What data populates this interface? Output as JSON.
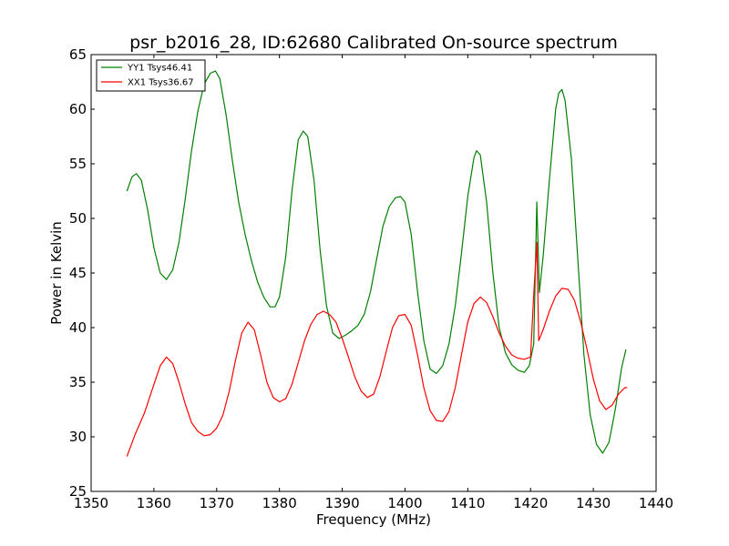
{
  "chart_data": {
    "type": "line",
    "title": "psr_b2016_28, ID:62680 Calibrated On-source spectrum",
    "xlabel": "Frequency (MHz)",
    "ylabel": "Power in Kelvin",
    "xlim": [
      1350,
      1440
    ],
    "ylim": [
      25,
      65
    ],
    "xticks": [
      1350,
      1360,
      1370,
      1380,
      1390,
      1400,
      1410,
      1420,
      1430,
      1440
    ],
    "yticks": [
      25,
      30,
      35,
      40,
      45,
      50,
      55,
      60,
      65
    ],
    "grid": false,
    "legend_position": "top-left",
    "series": [
      {
        "name": "YY1 Tsys46.41",
        "color": "#008000",
        "points": [
          [
            1355.7,
            52.5
          ],
          [
            1356.5,
            53.8
          ],
          [
            1357.2,
            54.1
          ],
          [
            1358.0,
            53.5
          ],
          [
            1359.0,
            50.8
          ],
          [
            1360.0,
            47.3
          ],
          [
            1361.0,
            45.0
          ],
          [
            1362.0,
            44.4
          ],
          [
            1363.0,
            45.3
          ],
          [
            1364.0,
            47.8
          ],
          [
            1365.0,
            51.8
          ],
          [
            1366.0,
            56.2
          ],
          [
            1367.0,
            59.8
          ],
          [
            1368.0,
            62.3
          ],
          [
            1369.0,
            63.3
          ],
          [
            1369.8,
            63.5
          ],
          [
            1370.5,
            62.8
          ],
          [
            1371.5,
            59.5
          ],
          [
            1372.5,
            55.3
          ],
          [
            1373.5,
            51.5
          ],
          [
            1374.5,
            48.6
          ],
          [
            1375.5,
            46.2
          ],
          [
            1376.5,
            44.2
          ],
          [
            1377.5,
            42.8
          ],
          [
            1378.5,
            41.9
          ],
          [
            1379.3,
            41.9
          ],
          [
            1380.0,
            42.8
          ],
          [
            1381.0,
            46.5
          ],
          [
            1382.0,
            52.5
          ],
          [
            1383.0,
            57.2
          ],
          [
            1383.8,
            58.0
          ],
          [
            1384.5,
            57.5
          ],
          [
            1385.5,
            53.5
          ],
          [
            1386.5,
            47.0
          ],
          [
            1387.5,
            42.0
          ],
          [
            1388.5,
            39.5
          ],
          [
            1389.5,
            39.0
          ],
          [
            1390.5,
            39.3
          ],
          [
            1391.5,
            39.7
          ],
          [
            1392.5,
            40.2
          ],
          [
            1393.5,
            41.2
          ],
          [
            1394.5,
            43.3
          ],
          [
            1395.5,
            46.3
          ],
          [
            1396.5,
            49.3
          ],
          [
            1397.5,
            51.1
          ],
          [
            1398.5,
            51.9
          ],
          [
            1399.3,
            52.0
          ],
          [
            1400.0,
            51.5
          ],
          [
            1401.0,
            48.5
          ],
          [
            1402.0,
            43.3
          ],
          [
            1403.0,
            38.8
          ],
          [
            1404.0,
            36.2
          ],
          [
            1405.0,
            35.8
          ],
          [
            1406.0,
            36.5
          ],
          [
            1407.0,
            38.5
          ],
          [
            1408.0,
            42.0
          ],
          [
            1409.0,
            46.8
          ],
          [
            1410.0,
            52.0
          ],
          [
            1411.0,
            55.6
          ],
          [
            1411.4,
            56.2
          ],
          [
            1412.0,
            55.8
          ],
          [
            1413.0,
            51.5
          ],
          [
            1414.0,
            45.0
          ],
          [
            1415.0,
            40.0
          ],
          [
            1416.0,
            37.7
          ],
          [
            1417.0,
            36.6
          ],
          [
            1418.0,
            36.1
          ],
          [
            1419.0,
            35.9
          ],
          [
            1419.8,
            36.5
          ],
          [
            1420.5,
            38.5
          ],
          [
            1421.0,
            51.5
          ],
          [
            1421.4,
            43.2
          ],
          [
            1422.0,
            46.5
          ],
          [
            1423.0,
            53.5
          ],
          [
            1424.0,
            60.0
          ],
          [
            1424.5,
            61.5
          ],
          [
            1425.0,
            61.8
          ],
          [
            1425.5,
            60.8
          ],
          [
            1426.5,
            55.5
          ],
          [
            1427.5,
            46.5
          ],
          [
            1428.5,
            37.5
          ],
          [
            1429.5,
            32.0
          ],
          [
            1430.5,
            29.3
          ],
          [
            1431.5,
            28.5
          ],
          [
            1432.5,
            29.5
          ],
          [
            1433.5,
            32.5
          ],
          [
            1434.5,
            36.3
          ],
          [
            1435.2,
            38.0
          ]
        ]
      },
      {
        "name": "XX1 Tsys36.67",
        "color": "#ff0000",
        "points": [
          [
            1355.7,
            28.2
          ],
          [
            1357.0,
            30.2
          ],
          [
            1358.5,
            32.2
          ],
          [
            1360.0,
            34.8
          ],
          [
            1361.0,
            36.5
          ],
          [
            1362.0,
            37.3
          ],
          [
            1363.0,
            36.7
          ],
          [
            1364.0,
            35.0
          ],
          [
            1365.0,
            33.0
          ],
          [
            1366.0,
            31.3
          ],
          [
            1367.0,
            30.5
          ],
          [
            1368.0,
            30.1
          ],
          [
            1369.0,
            30.2
          ],
          [
            1370.0,
            30.8
          ],
          [
            1371.0,
            32.0
          ],
          [
            1372.0,
            34.2
          ],
          [
            1373.0,
            37.0
          ],
          [
            1374.0,
            39.5
          ],
          [
            1375.0,
            40.5
          ],
          [
            1376.0,
            39.8
          ],
          [
            1377.0,
            37.5
          ],
          [
            1378.0,
            35.0
          ],
          [
            1379.0,
            33.6
          ],
          [
            1380.0,
            33.2
          ],
          [
            1381.0,
            33.5
          ],
          [
            1382.0,
            34.8
          ],
          [
            1383.0,
            36.8
          ],
          [
            1384.0,
            38.8
          ],
          [
            1385.0,
            40.3
          ],
          [
            1386.0,
            41.2
          ],
          [
            1387.0,
            41.5
          ],
          [
            1388.0,
            41.2
          ],
          [
            1389.0,
            40.5
          ],
          [
            1390.0,
            39.0
          ],
          [
            1391.0,
            37.3
          ],
          [
            1392.0,
            35.5
          ],
          [
            1393.0,
            34.2
          ],
          [
            1394.0,
            33.6
          ],
          [
            1395.0,
            33.9
          ],
          [
            1396.0,
            35.5
          ],
          [
            1397.0,
            37.8
          ],
          [
            1398.0,
            40.0
          ],
          [
            1399.0,
            41.1
          ],
          [
            1400.0,
            41.2
          ],
          [
            1401.0,
            40.2
          ],
          [
            1402.0,
            37.5
          ],
          [
            1403.0,
            34.5
          ],
          [
            1404.0,
            32.4
          ],
          [
            1405.0,
            31.5
          ],
          [
            1406.0,
            31.4
          ],
          [
            1407.0,
            32.3
          ],
          [
            1408.0,
            34.5
          ],
          [
            1409.0,
            37.5
          ],
          [
            1410.0,
            40.5
          ],
          [
            1411.0,
            42.2
          ],
          [
            1412.0,
            42.8
          ],
          [
            1413.0,
            42.3
          ],
          [
            1414.0,
            41.0
          ],
          [
            1415.0,
            39.5
          ],
          [
            1416.0,
            38.3
          ],
          [
            1417.0,
            37.5
          ],
          [
            1418.0,
            37.2
          ],
          [
            1419.0,
            37.1
          ],
          [
            1420.0,
            37.3
          ],
          [
            1420.5,
            43.0
          ],
          [
            1421.0,
            47.8
          ],
          [
            1421.3,
            38.8
          ],
          [
            1422.0,
            39.8
          ],
          [
            1423.0,
            41.5
          ],
          [
            1424.0,
            42.9
          ],
          [
            1425.0,
            43.6
          ],
          [
            1426.0,
            43.5
          ],
          [
            1427.0,
            42.5
          ],
          [
            1428.0,
            40.5
          ],
          [
            1429.0,
            38.0
          ],
          [
            1430.0,
            35.3
          ],
          [
            1431.0,
            33.3
          ],
          [
            1432.0,
            32.5
          ],
          [
            1433.0,
            32.9
          ],
          [
            1434.0,
            33.9
          ],
          [
            1435.0,
            34.5
          ],
          [
            1435.4,
            34.5
          ]
        ]
      }
    ]
  }
}
